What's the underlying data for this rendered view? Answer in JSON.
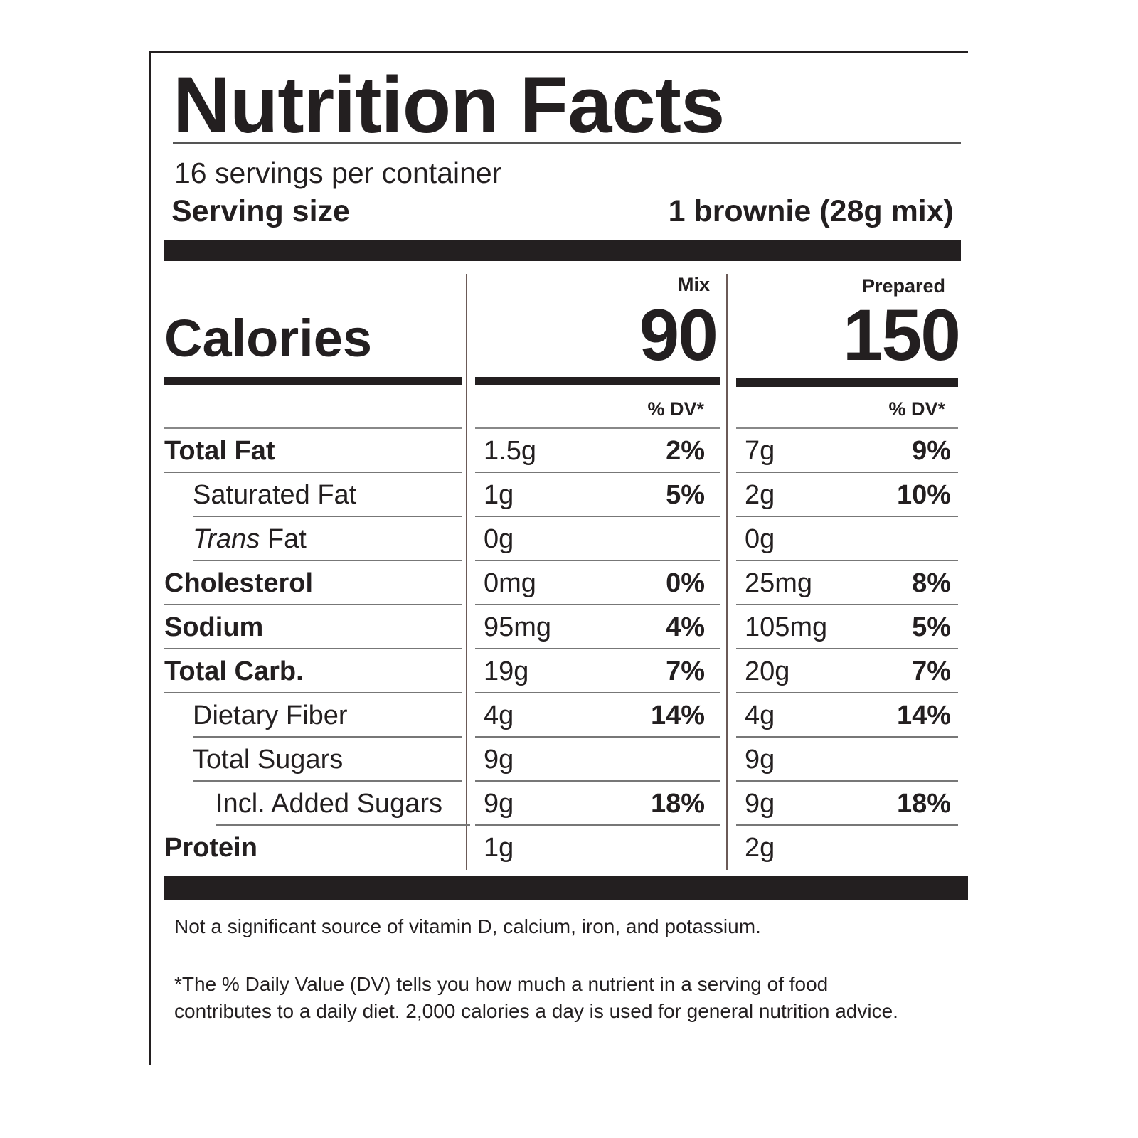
{
  "title": "Nutrition Facts",
  "servings_per_container": "16 servings per container",
  "serving_size": {
    "label": "Serving size",
    "value": "1 brownie (28g mix)"
  },
  "columns": [
    "Mix",
    "Prepared"
  ],
  "calories": {
    "label": "Calories",
    "values": [
      "90",
      "150"
    ]
  },
  "dv_header": "% DV*",
  "rows": [
    {
      "name": "Total Fat",
      "mix": "1.5g",
      "mix_dv": "2%",
      "prepared": "7g",
      "prepared_dv": "9%"
    },
    {
      "name": "Saturated Fat",
      "mix": "1g",
      "mix_dv": "5%",
      "prepared": "2g",
      "prepared_dv": "10%"
    },
    {
      "name_italic": "Trans",
      "name": "Fat",
      "mix": "0g",
      "prepared": "0g"
    },
    {
      "name": "Cholesterol",
      "mix": "0mg",
      "mix_dv": "0%",
      "prepared": "25mg",
      "prepared_dv": "8%"
    },
    {
      "name": "Sodium",
      "mix": "95mg",
      "mix_dv": "4%",
      "prepared": "105mg",
      "prepared_dv": "5%"
    },
    {
      "name": "Total Carb.",
      "mix": "19g",
      "mix_dv": "7%",
      "prepared": "20g",
      "prepared_dv": "7%"
    },
    {
      "name": "Dietary Fiber",
      "mix": "4g",
      "mix_dv": "14%",
      "prepared": "4g",
      "prepared_dv": "14%"
    },
    {
      "name": "Total Sugars",
      "mix": "9g",
      "prepared": "9g"
    },
    {
      "name": "Incl. Added Sugars",
      "mix": "9g",
      "mix_dv": "18%",
      "prepared": "9g",
      "prepared_dv": "18%"
    },
    {
      "name": "Protein",
      "mix": "1g",
      "prepared": "2g"
    }
  ],
  "footnotes": [
    "Not a significant source of vitamin D, calcium, iron, and potassium.",
    "*The % Daily Value (DV) tells you how much a nutrient in a serving of food contributes to a daily diet. 2,000 calories a day is used for general nutrition advice."
  ]
}
